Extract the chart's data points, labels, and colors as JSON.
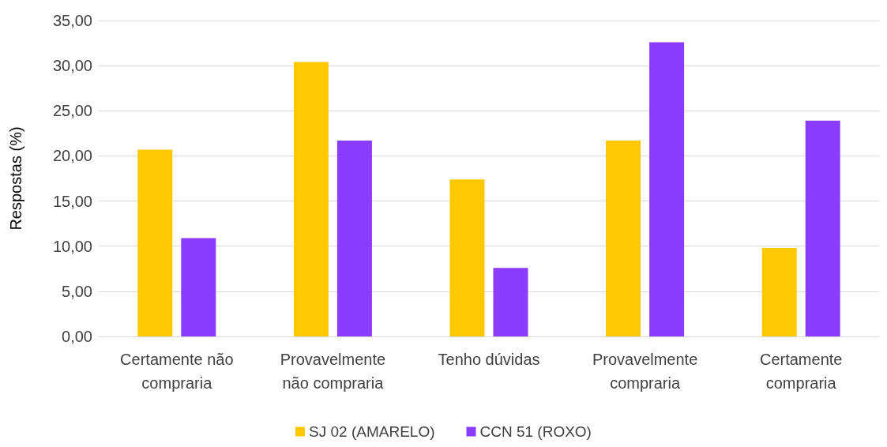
{
  "chart_data": {
    "type": "bar",
    "ylabel": "Respostas (%)",
    "categories": [
      "Certamente não\ncompraria",
      "Provavelmente\nnão compraria",
      "Tenho dúvidas",
      "Provavelmente\ncompraria",
      "Certamente\ncompraria"
    ],
    "series": [
      {
        "name": "SJ 02 (AMARELO)",
        "color": "#ffc800",
        "values": [
          20.7,
          30.4,
          17.4,
          21.7,
          9.8
        ]
      },
      {
        "name": "CCN 51 (ROXO)",
        "color": "#8a3cff",
        "values": [
          10.9,
          21.7,
          7.6,
          32.6,
          23.9
        ]
      }
    ],
    "ylim": [
      0,
      35
    ],
    "yticks": [
      {
        "value": 0,
        "label": "0,00"
      },
      {
        "value": 5,
        "label": "5,00"
      },
      {
        "value": 10,
        "label": "10,00"
      },
      {
        "value": 15,
        "label": "15,00"
      },
      {
        "value": 20,
        "label": "20,00"
      },
      {
        "value": 25,
        "label": "25,00"
      },
      {
        "value": 30,
        "label": "30,00"
      },
      {
        "value": 35,
        "label": "35,00"
      }
    ],
    "grid": "y",
    "legend": "bottom"
  }
}
